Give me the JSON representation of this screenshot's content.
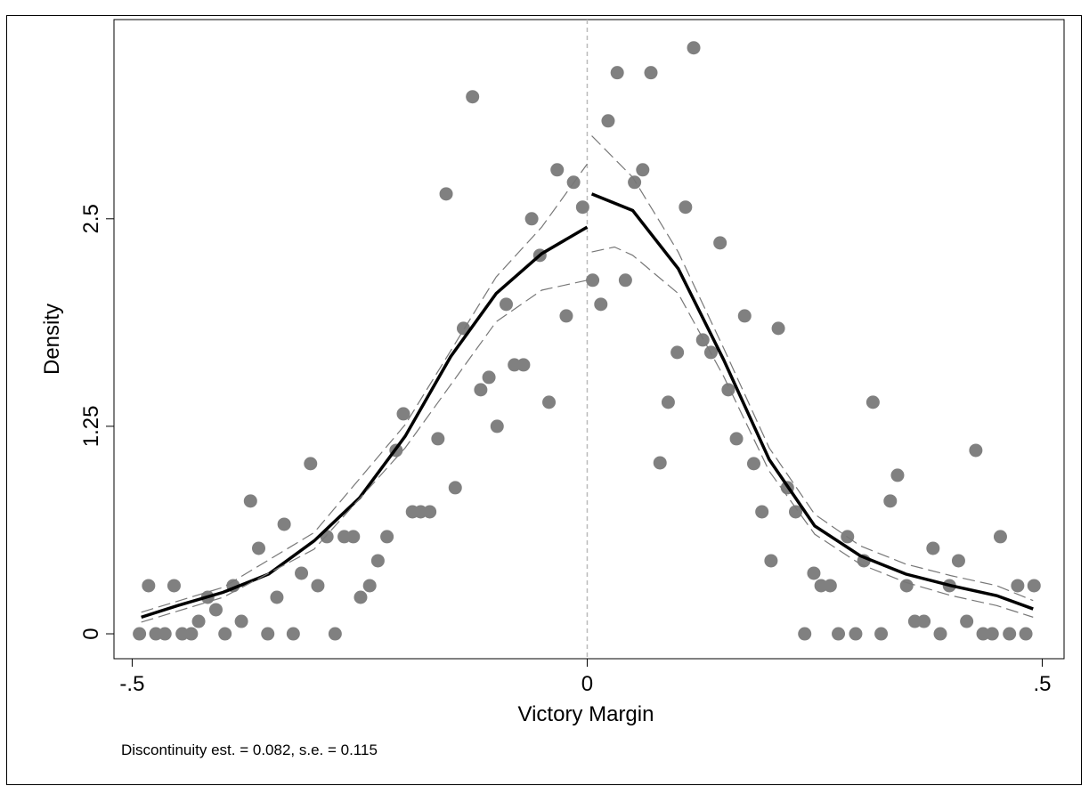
{
  "chart_data": {
    "type": "scatter",
    "xlabel": "Victory Margin",
    "ylabel": "Density",
    "note": "Discontinuity est. = 0.082, s.e. =  0.115",
    "xlim": [
      -0.52,
      0.524
    ],
    "ylim": [
      -0.15,
      3.7
    ],
    "xticks": [
      {
        "value": -0.5,
        "label": "-.5"
      },
      0,
      {
        "value": 0.5,
        "label": ".5"
      }
    ],
    "yticks": [
      0,
      1.25,
      2.5
    ],
    "reference_line_x": 0,
    "series": [
      {
        "style": "markers",
        "color": "#808080",
        "x": [
          -0.492,
          -0.482,
          -0.474,
          -0.464,
          -0.454,
          -0.445,
          -0.435,
          -0.427,
          -0.417,
          -0.408,
          -0.398,
          -0.389,
          -0.38,
          -0.37,
          -0.361,
          -0.351,
          -0.341,
          -0.333,
          -0.323,
          -0.314,
          -0.304,
          -0.296,
          -0.286,
          -0.277,
          -0.267,
          -0.257,
          -0.249,
          -0.239,
          -0.23,
          -0.22,
          -0.21,
          -0.202,
          -0.192,
          -0.183,
          -0.173,
          -0.164,
          -0.155,
          -0.145,
          -0.136,
          -0.126,
          -0.117,
          -0.108,
          -0.099,
          -0.089,
          -0.08,
          -0.07,
          -0.061,
          -0.052,
          -0.042,
          -0.033,
          -0.023,
          -0.015,
          -0.005,
          0.006,
          0.015,
          0.023,
          0.033,
          0.042,
          0.052,
          0.061,
          0.07,
          0.08,
          0.089,
          0.099,
          0.108,
          0.117,
          0.127,
          0.136,
          0.146,
          0.155,
          0.164,
          0.173,
          0.183,
          0.192,
          0.202,
          0.21,
          0.22,
          0.229,
          0.239,
          0.249,
          0.257,
          0.267,
          0.276,
          0.286,
          0.295,
          0.304,
          0.314,
          0.323,
          0.333,
          0.341,
          0.351,
          0.36,
          0.37,
          0.38,
          0.388,
          0.398,
          0.408,
          0.417,
          0.427,
          0.435,
          0.445,
          0.454,
          0.464,
          0.473,
          0.482,
          0.491
        ],
        "values": [
          0,
          0.29,
          0,
          0,
          0.29,
          0,
          0,
          0.075,
          0.22,
          0.145,
          0,
          0.29,
          0.075,
          0.8,
          0.515,
          0,
          0.22,
          0.66,
          0,
          0.365,
          1.025,
          0.29,
          0.585,
          0,
          0.585,
          0.585,
          0.22,
          0.29,
          0.44,
          0.585,
          1.105,
          1.325,
          0.735,
          0.735,
          0.735,
          1.175,
          2.65,
          0.88,
          1.84,
          3.235,
          1.47,
          1.545,
          1.25,
          1.985,
          1.62,
          1.62,
          2.5,
          2.28,
          1.395,
          2.795,
          1.915,
          2.72,
          2.57,
          2.13,
          1.985,
          3.09,
          3.38,
          2.13,
          2.72,
          2.795,
          3.38,
          1.03,
          1.395,
          1.695,
          2.57,
          3.53,
          1.77,
          1.695,
          2.355,
          1.47,
          1.175,
          1.915,
          1.025,
          0.735,
          0.44,
          1.84,
          0.88,
          0.735,
          0,
          0.365,
          0.29,
          0.29,
          0,
          0.585,
          0,
          0.44,
          1.395,
          0,
          0.8,
          0.955,
          0.29,
          0.075,
          0.075,
          0.515,
          0,
          0.29,
          0.44,
          0.075,
          1.105,
          0,
          0,
          0.585,
          0,
          0.29,
          0,
          0.29
        ]
      },
      {
        "style": "solid",
        "color": "#000000",
        "x": [
          -0.49,
          -0.45,
          -0.4,
          -0.35,
          -0.3,
          -0.25,
          -0.2,
          -0.15,
          -0.1,
          -0.05,
          0
        ],
        "values": [
          0.1,
          0.17,
          0.25,
          0.36,
          0.56,
          0.82,
          1.19,
          1.67,
          2.05,
          2.29,
          2.45
        ]
      },
      {
        "style": "dashed",
        "color": "#777777",
        "x": [
          -0.49,
          -0.4,
          -0.3,
          -0.2,
          -0.1,
          -0.05,
          0
        ],
        "values": [
          0.13,
          0.28,
          0.61,
          1.26,
          2.15,
          2.45,
          2.83
        ]
      },
      {
        "style": "dashed",
        "color": "#777777",
        "x": [
          -0.49,
          -0.4,
          -0.3,
          -0.2,
          -0.1,
          -0.05,
          0
        ],
        "values": [
          0.07,
          0.22,
          0.51,
          1.12,
          1.88,
          2.07,
          2.13
        ]
      },
      {
        "style": "solid",
        "color": "#000000",
        "x": [
          0.005,
          0.05,
          0.1,
          0.15,
          0.2,
          0.25,
          0.3,
          0.35,
          0.4,
          0.45,
          0.49
        ],
        "values": [
          2.65,
          2.55,
          2.2,
          1.65,
          1.05,
          0.65,
          0.47,
          0.36,
          0.29,
          0.23,
          0.15
        ]
      },
      {
        "style": "dashed",
        "color": "#777777",
        "x": [
          0.005,
          0.05,
          0.1,
          0.15,
          0.2,
          0.25,
          0.3,
          0.35,
          0.4,
          0.45,
          0.49
        ],
        "values": [
          3.0,
          2.75,
          2.3,
          1.72,
          1.12,
          0.72,
          0.53,
          0.42,
          0.35,
          0.29,
          0.2
        ]
      },
      {
        "style": "dashed",
        "color": "#777777",
        "x": [
          0.005,
          0.03,
          0.05,
          0.1,
          0.15,
          0.2,
          0.25,
          0.3,
          0.35,
          0.4,
          0.45,
          0.49
        ],
        "values": [
          2.3,
          2.33,
          2.28,
          2.05,
          1.55,
          0.98,
          0.6,
          0.42,
          0.31,
          0.23,
          0.17,
          0.1
        ]
      }
    ]
  }
}
